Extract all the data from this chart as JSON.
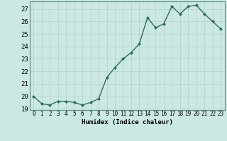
{
  "x": [
    0,
    1,
    2,
    3,
    4,
    5,
    6,
    7,
    8,
    9,
    10,
    11,
    12,
    13,
    14,
    15,
    16,
    17,
    18,
    19,
    20,
    21,
    22,
    23
  ],
  "y": [
    20.0,
    19.4,
    19.3,
    19.6,
    19.6,
    19.5,
    19.3,
    19.5,
    19.8,
    21.5,
    22.3,
    23.0,
    23.5,
    24.2,
    26.3,
    25.5,
    25.8,
    27.2,
    26.6,
    27.2,
    27.3,
    26.6,
    26.0,
    25.4
  ],
  "line_color": "#2d6b5e",
  "marker": "D",
  "marker_size": 2.0,
  "bg_color": "#cce8e4",
  "grid_color": "#b8d4d0",
  "xlabel": "Humidex (Indice chaleur)",
  "ylim": [
    18.9,
    27.6
  ],
  "yticks": [
    19,
    20,
    21,
    22,
    23,
    24,
    25,
    26,
    27
  ],
  "xlim": [
    -0.5,
    23.5
  ],
  "xticks": [
    0,
    1,
    2,
    3,
    4,
    5,
    6,
    7,
    8,
    9,
    10,
    11,
    12,
    13,
    14,
    15,
    16,
    17,
    18,
    19,
    20,
    21,
    22,
    23
  ],
  "xlabel_fontsize": 6.5,
  "ytick_fontsize": 6.5,
  "xtick_fontsize": 5.5,
  "line_width": 1.0
}
